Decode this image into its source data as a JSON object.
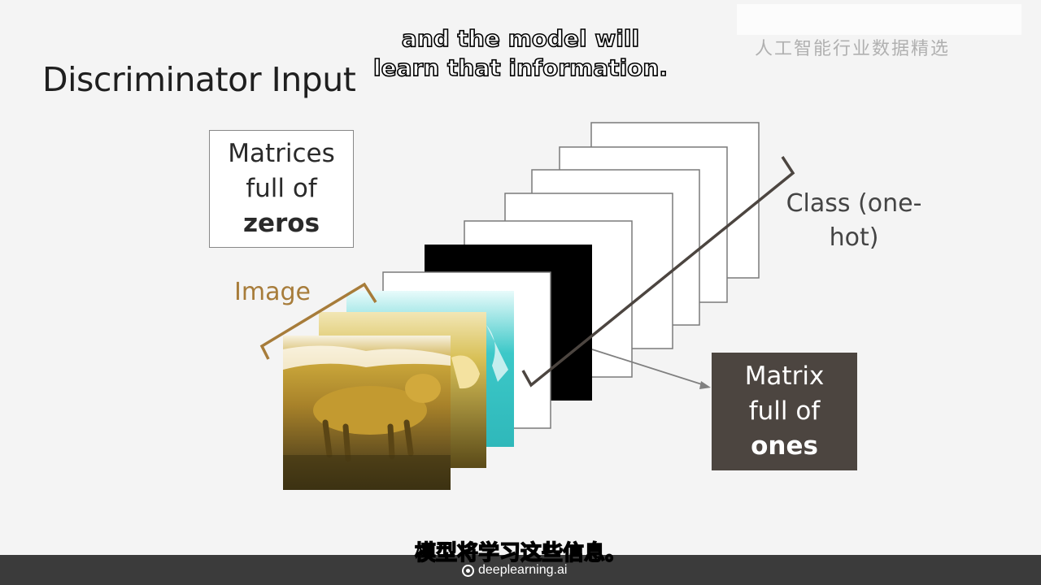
{
  "slide": {
    "title": "Discriminator Input",
    "subtitle_en_line1": "and the model will",
    "subtitle_en_line2": "learn that information.",
    "subtitle_zh": "模型将学习这些信息。",
    "watermark": "人工智能行业数据精选"
  },
  "labels": {
    "zeros_line1": "Matrices",
    "zeros_line2": "full of",
    "zeros_line3": "zeros",
    "ones_line1": "Matrix",
    "ones_line2": "full of",
    "ones_line3": "ones",
    "class_line1": "Class (one-",
    "class_line2": "hot)",
    "image": "Image"
  },
  "footer": {
    "brand": "deeplearning.ai"
  },
  "colors": {
    "image_bracket": "#a77c3a",
    "class_bracket": "#4c4540",
    "ones_matrix": "#000000",
    "ones_box_bg": "#4c4540"
  }
}
